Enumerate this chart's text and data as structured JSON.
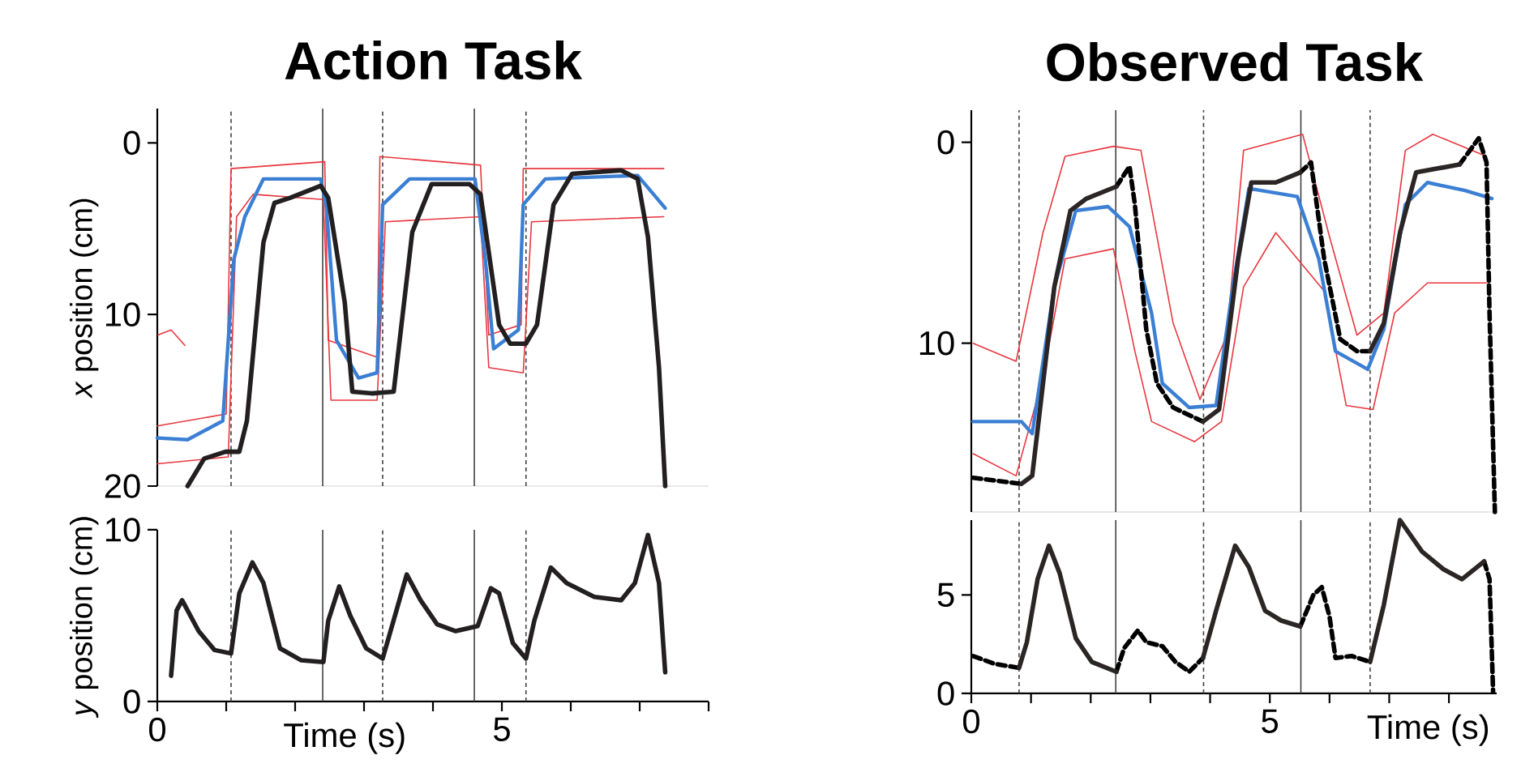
{
  "chart_data": [
    {
      "type": "line",
      "title": "Action Task",
      "ylabel": "*x* position (cm)",
      "xlim": [
        0,
        8
      ],
      "ylim": [
        20,
        -2
      ],
      "yticks": [
        0,
        10,
        20
      ],
      "tick_labels": "y",
      "ref_lines": [
        {
          "axis": "x",
          "value": 1.07,
          "line_style": "dashed"
        },
        {
          "axis": "x",
          "value": 2.4,
          "line_style": "solid"
        },
        {
          "axis": "x",
          "value": 3.27,
          "line_style": "dashed"
        },
        {
          "axis": "x",
          "value": 4.6,
          "line_style": "solid"
        },
        {
          "axis": "x",
          "value": 5.35,
          "line_style": "dashed"
        }
      ],
      "series": [
        {
          "color": "#e8373f",
          "x": [
            0,
            1.0,
            1.07,
            2.43,
            2.48,
            3.19,
            3.23,
            4.69,
            4.81,
            5.28,
            5.31,
            7.35
          ],
          "values": [
            16.5,
            15.8,
            1.5,
            1.1,
            11.5,
            12.5,
            0.8,
            1.3,
            11.2,
            10.6,
            1.5,
            1.5
          ]
        },
        {
          "color": "#e8373f",
          "x": [
            0,
            1.03,
            1.15,
            1.39,
            2.41,
            2.52,
            3.19,
            3.31,
            4.69,
            4.81,
            5.31,
            5.43,
            7.35
          ],
          "values": [
            18.7,
            18.3,
            4.3,
            3.0,
            3.3,
            15.0,
            15.0,
            4.6,
            4.3,
            13.1,
            13.4,
            4.6,
            4.3
          ]
        },
        {
          "color": "#e8373f",
          "x": [
            0.01,
            0.2,
            0.4
          ],
          "values": [
            11.2,
            10.9,
            11.8
          ]
        },
        {
          "color": "#3b7fd4",
          "x": [
            0,
            0.44,
            0.95,
            1.11,
            1.27,
            1.54,
            2.37,
            2.45,
            2.6,
            2.92,
            3.19,
            3.27,
            3.66,
            4.61,
            4.76,
            4.88,
            5.24,
            5.31,
            5.63,
            6.97,
            7.37
          ],
          "values": [
            17.2,
            17.3,
            16.2,
            6.8,
            4.3,
            2.1,
            2.1,
            3.6,
            11.5,
            13.7,
            13.4,
            3.6,
            2.1,
            2.1,
            6.8,
            12.0,
            10.9,
            3.6,
            2.1,
            1.9,
            3.8
          ]
        },
        {
          "color": "#231f20",
          "x": [
            0.44,
            0.68,
            0.99,
            1.19,
            1.3,
            1.54,
            1.7,
            1.93,
            2.37,
            2.48,
            2.72,
            2.83,
            3.11,
            3.43,
            3.7,
            3.98,
            4.53,
            4.69,
            4.96,
            5.12,
            5.35,
            5.51,
            5.75,
            6.02,
            6.73,
            6.97,
            7.12,
            7.28,
            7.37
          ],
          "values": [
            20,
            18.4,
            18.0,
            18.0,
            16.2,
            5.8,
            3.5,
            3.2,
            2.5,
            3.2,
            9.3,
            14.5,
            14.6,
            14.5,
            5.2,
            2.4,
            2.4,
            3.0,
            10.6,
            11.7,
            11.7,
            10.6,
            3.6,
            1.8,
            1.6,
            2.1,
            5.5,
            13.1,
            20
          ]
        }
      ]
    },
    {
      "type": "line",
      "xlabel": "Time (s)",
      "ylabel": "*y* position (cm)",
      "xlim": [
        0,
        8
      ],
      "ylim": [
        0,
        10
      ],
      "yticks": [
        0,
        10
      ],
      "xticks": [
        0,
        {
          "value": 1,
          "label": null
        },
        {
          "value": 2,
          "label": null
        },
        {
          "value": 3,
          "label": null
        },
        {
          "value": 4,
          "label": null
        },
        5,
        {
          "value": 6,
          "label": null
        },
        {
          "value": 7,
          "label": null
        },
        {
          "value": 8,
          "label": null
        }
      ],
      "ref_lines": [
        {
          "axis": "x",
          "value": 1.07,
          "line_style": "dashed"
        },
        {
          "axis": "x",
          "value": 2.4,
          "line_style": "solid"
        },
        {
          "axis": "x",
          "value": 3.27,
          "line_style": "dashed"
        },
        {
          "axis": "x",
          "value": 4.6,
          "line_style": "solid"
        },
        {
          "axis": "x",
          "value": 5.35,
          "line_style": "dashed"
        }
      ],
      "series": [
        {
          "color": "#231f20",
          "x": [
            0.2,
            0.28,
            0.36,
            0.6,
            0.83,
            1.07,
            1.19,
            1.38,
            1.54,
            1.78,
            2.09,
            2.41,
            2.48,
            2.64,
            2.8,
            3.03,
            3.27,
            3.47,
            3.62,
            3.82,
            4.06,
            4.33,
            4.65,
            4.84,
            4.96,
            5.16,
            5.35,
            5.47,
            5.71,
            5.94,
            6.34,
            6.73,
            6.93,
            7.12,
            7.28,
            7.37
          ],
          "values": [
            1.5,
            5.3,
            5.9,
            4.1,
            3.0,
            2.8,
            6.3,
            8.1,
            6.9,
            3.1,
            2.4,
            2.3,
            4.7,
            6.7,
            5.0,
            3.1,
            2.5,
            5.3,
            7.4,
            5.9,
            4.5,
            4.1,
            4.4,
            6.6,
            6.3,
            3.4,
            2.5,
            4.7,
            7.8,
            6.9,
            6.1,
            5.9,
            6.9,
            9.7,
            6.9,
            1.7
          ]
        }
      ]
    },
    {
      "type": "line",
      "title": "Observed Task",
      "xlim": [
        0,
        8.8
      ],
      "ylim": [
        18.4,
        -1.6
      ],
      "yticks": [
        0,
        10
      ],
      "tick_labels": "y",
      "ref_lines": [
        {
          "axis": "x",
          "value": 0.8,
          "line_style": "dashed"
        },
        {
          "axis": "x",
          "value": 2.42,
          "line_style": "solid"
        },
        {
          "axis": "x",
          "value": 3.89,
          "line_style": "dashed"
        },
        {
          "axis": "x",
          "value": 5.52,
          "line_style": "solid"
        },
        {
          "axis": "x",
          "value": 6.68,
          "line_style": "dashed"
        }
      ],
      "series": [
        {
          "color": "#e8373f",
          "x": [
            0.03,
            0.75,
            1.2,
            1.57,
            2.38,
            2.84,
            3.38,
            3.83,
            4.28,
            4.56,
            5.55,
            6.0,
            6.46,
            6.91,
            7.27,
            7.73,
            8.63
          ],
          "values": [
            10.0,
            10.9,
            4.5,
            0.7,
            0.2,
            0.4,
            9.0,
            12.8,
            9.6,
            0.4,
            -0.4,
            4.7,
            9.6,
            8.5,
            0.4,
            -0.4,
            0.7
          ]
        },
        {
          "color": "#e8373f",
          "x": [
            0.03,
            0.75,
            1.2,
            1.57,
            2.38,
            2.74,
            3.02,
            3.74,
            4.19,
            4.56,
            5.1,
            5.91,
            6.28,
            6.73,
            7.09,
            7.64,
            8.63
          ],
          "values": [
            15.5,
            16.6,
            11.7,
            5.8,
            5.3,
            10.4,
            13.9,
            14.9,
            13.9,
            7.2,
            4.5,
            7.4,
            13.1,
            13.3,
            8.5,
            7.0,
            7.0
          ]
        },
        {
          "color": "#3b7fd4",
          "x": [
            0.03,
            0.84,
            1.02,
            1.39,
            1.75,
            2.29,
            2.65,
            3.02,
            3.2,
            3.65,
            4.1,
            4.38,
            4.65,
            5.46,
            5.82,
            6.1,
            6.64,
            6.91,
            7.27,
            7.64,
            8.27,
            8.72
          ],
          "values": [
            13.9,
            13.9,
            14.5,
            7.2,
            3.4,
            3.2,
            4.2,
            8.5,
            12.0,
            13.2,
            13.1,
            7.2,
            2.3,
            2.7,
            5.8,
            10.4,
            11.3,
            9.3,
            3.1,
            2.0,
            2.4,
            2.8
          ]
        },
        {
          "color": "#000000",
          "line_style": "dashed",
          "x": [
            0.03,
            0.84,
            null,
            2.43,
            2.65,
            2.74,
            2.93,
            3.11,
            3.38,
            3.88,
            null,
            5.51,
            5.69,
            5.91,
            6.18,
            6.46,
            6.68,
            null,
            8.18,
            8.5,
            8.63,
            8.68,
            8.77
          ],
          "values": [
            16.7,
            17.0,
            null,
            2.2,
            1.2,
            3.1,
            9.3,
            12.0,
            13.2,
            13.9,
            null,
            1.5,
            1.0,
            5.8,
            9.8,
            10.4,
            10.4,
            null,
            1.1,
            -0.2,
            1.0,
            8.5,
            18.4
          ]
        },
        {
          "color": "#2b2526",
          "line_style": "solid",
          "x": [
            0.84,
            1.02,
            1.39,
            1.66,
            1.93,
            2.43,
            null,
            3.88,
            4.15,
            4.47,
            4.69,
            5.1,
            5.51,
            null,
            6.68,
            6.91,
            7.18,
            7.45,
            8.18
          ],
          "values": [
            17.0,
            16.6,
            7.2,
            3.4,
            2.8,
            2.2,
            null,
            13.9,
            13.3,
            5.8,
            2.0,
            2.0,
            1.5,
            null,
            10.4,
            9.0,
            4.5,
            1.5,
            1.1
          ]
        }
      ]
    },
    {
      "type": "line",
      "xlabel": "Time (s)",
      "xlim": [
        0,
        8.8
      ],
      "ylim": [
        0,
        8.8
      ],
      "yticks": [
        0,
        5
      ],
      "xticks": [
        0,
        {
          "value": 1,
          "label": null
        },
        {
          "value": 2,
          "label": null
        },
        {
          "value": 3,
          "label": null
        },
        {
          "value": 4,
          "label": null
        },
        5,
        {
          "value": 6,
          "label": null
        },
        {
          "value": 7,
          "label": null
        },
        {
          "value": 8,
          "label": null
        }
      ],
      "ref_lines": [
        {
          "axis": "x",
          "value": 0.8,
          "line_style": "dashed"
        },
        {
          "axis": "x",
          "value": 2.42,
          "line_style": "solid"
        },
        {
          "axis": "x",
          "value": 3.89,
          "line_style": "dashed"
        },
        {
          "axis": "x",
          "value": 5.52,
          "line_style": "solid"
        },
        {
          "axis": "x",
          "value": 6.68,
          "line_style": "dashed"
        }
      ],
      "series": [
        {
          "color": "#000000",
          "line_style": "dashed",
          "x": [
            0.03,
            0.39,
            0.8,
            null,
            2.43,
            2.56,
            2.79,
            2.93,
            3.2,
            3.42,
            3.65,
            3.88,
            null,
            5.51,
            5.73,
            5.87,
            6.0,
            6.1,
            6.37,
            6.68,
            null,
            8.59,
            8.68,
            8.74
          ],
          "values": [
            1.9,
            1.5,
            1.3,
            null,
            1.1,
            2.3,
            3.2,
            2.6,
            2.4,
            1.6,
            1.1,
            1.8,
            null,
            3.4,
            5.0,
            5.4,
            3.9,
            1.8,
            1.9,
            1.6,
            null,
            6.7,
            5.8,
            0.1
          ]
        },
        {
          "color": "#2b2526",
          "line_style": "solid",
          "x": [
            0.8,
            0.93,
            1.11,
            1.3,
            1.48,
            1.75,
            2.02,
            2.43,
            null,
            3.88,
            4.1,
            4.42,
            4.65,
            4.92,
            5.19,
            5.51,
            null,
            6.68,
            6.91,
            7.18,
            7.55,
            7.91,
            8.22,
            8.59
          ],
          "values": [
            1.3,
            2.6,
            5.8,
            7.5,
            6.1,
            2.8,
            1.6,
            1.1,
            null,
            1.8,
            4.2,
            7.5,
            6.4,
            4.2,
            3.7,
            3.4,
            null,
            1.6,
            4.5,
            8.8,
            7.2,
            6.3,
            5.8,
            6.7
          ]
        }
      ]
    }
  ]
}
